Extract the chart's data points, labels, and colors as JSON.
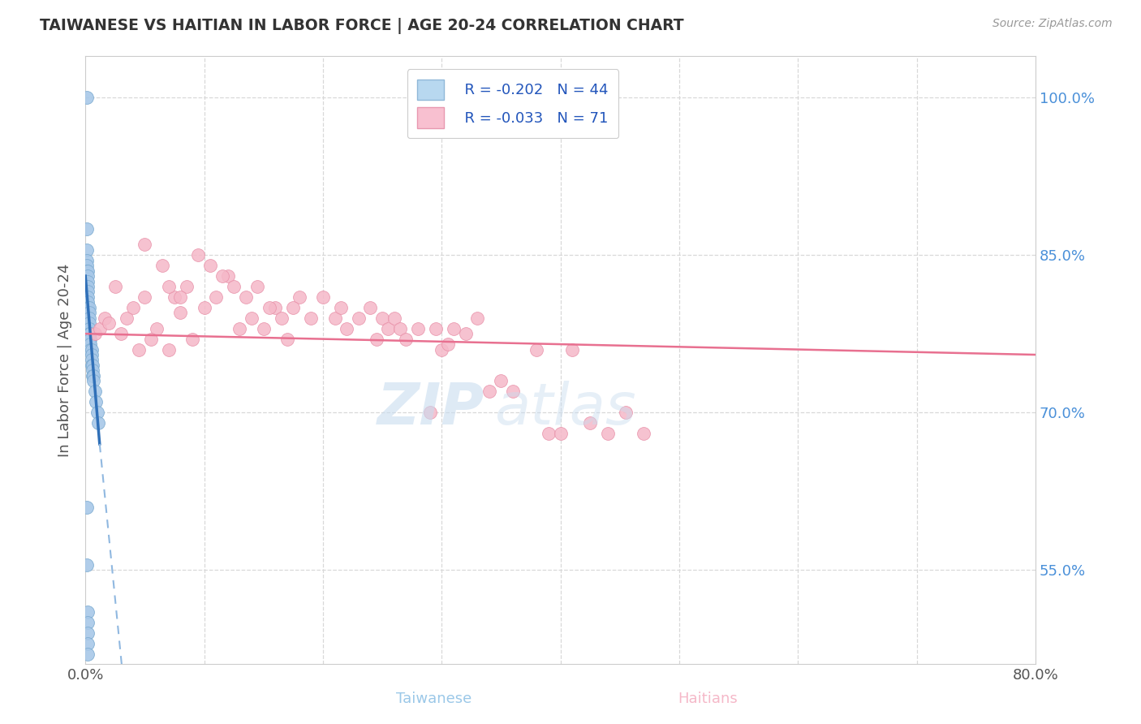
{
  "title": "TAIWANESE VS HAITIAN IN LABOR FORCE | AGE 20-24 CORRELATION CHART",
  "source": "Source: ZipAtlas.com",
  "xlabel_taiwanese": "Taiwanese",
  "xlabel_haitians": "Haitians",
  "ylabel": "In Labor Force | Age 20-24",
  "xlim": [
    0.0,
    0.8
  ],
  "ylim": [
    0.46,
    1.04
  ],
  "blue_color": "#A8C8E8",
  "blue_edge": "#7AAAD0",
  "pink_color": "#F5B8C8",
  "pink_edge": "#E890A8",
  "blue_trend_color": "#3070B8",
  "blue_dash_color": "#90B8E0",
  "pink_trend_color": "#E87090",
  "background_color": "#FFFFFF",
  "grid_color": "#D8D8D8",
  "label_color": "#4A90D9",
  "title_color": "#333333",
  "source_color": "#999999",
  "blue_R": -0.202,
  "blue_N": 44,
  "pink_R": -0.033,
  "pink_N": 71,
  "blue_x": [
    0.001,
    0.001,
    0.001,
    0.001,
    0.001,
    0.001,
    0.002,
    0.002,
    0.002,
    0.002,
    0.002,
    0.002,
    0.002,
    0.002,
    0.003,
    0.003,
    0.003,
    0.003,
    0.003,
    0.003,
    0.004,
    0.004,
    0.004,
    0.004,
    0.005,
    0.005,
    0.005,
    0.005,
    0.006,
    0.006,
    0.006,
    0.007,
    0.007,
    0.008,
    0.009,
    0.01,
    0.011,
    0.001,
    0.001,
    0.002,
    0.002,
    0.002,
    0.002,
    0.002
  ],
  "blue_y": [
    1.0,
    0.875,
    0.855,
    0.845,
    0.84,
    0.835,
    0.835,
    0.83,
    0.825,
    0.82,
    0.815,
    0.81,
    0.805,
    0.8,
    0.8,
    0.795,
    0.79,
    0.785,
    0.78,
    0.775,
    0.775,
    0.77,
    0.765,
    0.76,
    0.76,
    0.755,
    0.75,
    0.745,
    0.745,
    0.74,
    0.735,
    0.735,
    0.73,
    0.72,
    0.71,
    0.7,
    0.69,
    0.61,
    0.555,
    0.51,
    0.5,
    0.49,
    0.48,
    0.47
  ],
  "pink_x": [
    0.008,
    0.012,
    0.016,
    0.02,
    0.025,
    0.03,
    0.035,
    0.04,
    0.045,
    0.05,
    0.06,
    0.07,
    0.075,
    0.08,
    0.09,
    0.1,
    0.11,
    0.12,
    0.13,
    0.14,
    0.15,
    0.16,
    0.17,
    0.18,
    0.19,
    0.2,
    0.21,
    0.215,
    0.22,
    0.23,
    0.24,
    0.245,
    0.25,
    0.255,
    0.26,
    0.265,
    0.27,
    0.28,
    0.29,
    0.295,
    0.3,
    0.305,
    0.31,
    0.32,
    0.33,
    0.34,
    0.35,
    0.36,
    0.38,
    0.39,
    0.4,
    0.41,
    0.425,
    0.44,
    0.455,
    0.47,
    0.055,
    0.065,
    0.085,
    0.095,
    0.105,
    0.115,
    0.125,
    0.135,
    0.145,
    0.155,
    0.165,
    0.175,
    0.05,
    0.07,
    0.08
  ],
  "pink_y": [
    0.775,
    0.78,
    0.79,
    0.785,
    0.82,
    0.775,
    0.79,
    0.8,
    0.76,
    0.81,
    0.78,
    0.76,
    0.81,
    0.795,
    0.77,
    0.8,
    0.81,
    0.83,
    0.78,
    0.79,
    0.78,
    0.8,
    0.77,
    0.81,
    0.79,
    0.81,
    0.79,
    0.8,
    0.78,
    0.79,
    0.8,
    0.77,
    0.79,
    0.78,
    0.79,
    0.78,
    0.77,
    0.78,
    0.7,
    0.78,
    0.76,
    0.765,
    0.78,
    0.775,
    0.79,
    0.72,
    0.73,
    0.72,
    0.76,
    0.68,
    0.68,
    0.76,
    0.69,
    0.68,
    0.7,
    0.68,
    0.77,
    0.84,
    0.82,
    0.85,
    0.84,
    0.83,
    0.82,
    0.81,
    0.82,
    0.8,
    0.79,
    0.8,
    0.86,
    0.82,
    0.81
  ]
}
